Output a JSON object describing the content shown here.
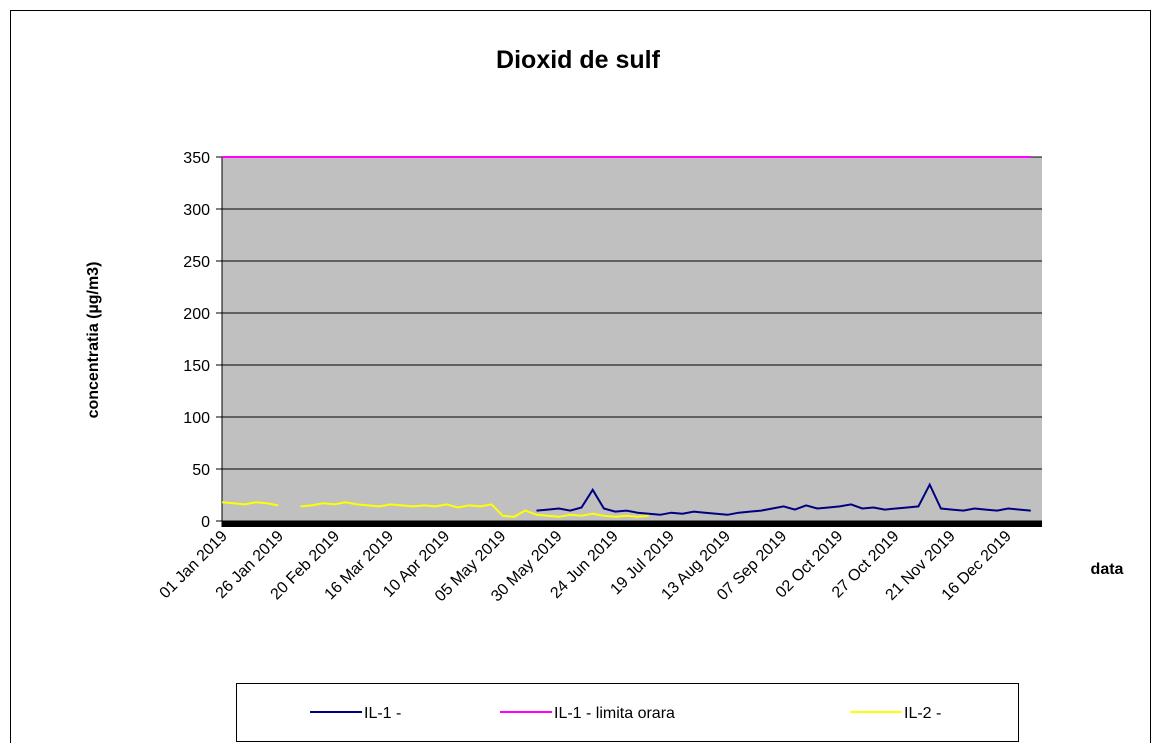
{
  "chart_data": {
    "type": "line",
    "title": "Dioxid de sulf",
    "x_label": "data",
    "y_label": "concentratia (µg/m3)",
    "x": [
      "2019-01-01",
      "2019-01-06",
      "2019-01-11",
      "2019-01-16",
      "2019-01-21",
      "2019-01-26",
      "2019-01-31",
      "2019-02-05",
      "2019-02-10",
      "2019-02-15",
      "2019-02-20",
      "2019-02-25",
      "2019-03-02",
      "2019-03-07",
      "2019-03-12",
      "2019-03-17",
      "2019-03-22",
      "2019-03-27",
      "2019-04-01",
      "2019-04-06",
      "2019-04-11",
      "2019-04-16",
      "2019-04-21",
      "2019-04-26",
      "2019-05-01",
      "2019-05-06",
      "2019-05-11",
      "2019-05-16",
      "2019-05-21",
      "2019-05-26",
      "2019-05-31",
      "2019-06-05",
      "2019-06-10",
      "2019-06-15",
      "2019-06-20",
      "2019-06-25",
      "2019-06-30",
      "2019-07-05",
      "2019-07-10",
      "2019-07-15",
      "2019-07-20",
      "2019-07-25",
      "2019-07-30",
      "2019-08-04",
      "2019-08-09",
      "2019-08-14",
      "2019-08-19",
      "2019-08-24",
      "2019-08-29",
      "2019-09-03",
      "2019-09-08",
      "2019-09-13",
      "2019-09-18",
      "2019-09-23",
      "2019-09-28",
      "2019-10-03",
      "2019-10-08",
      "2019-10-13",
      "2019-10-18",
      "2019-10-23",
      "2019-10-28",
      "2019-11-02",
      "2019-11-07",
      "2019-11-12",
      "2019-11-17",
      "2019-11-22",
      "2019-11-27",
      "2019-12-02",
      "2019-12-07",
      "2019-12-12",
      "2019-12-17",
      "2019-12-22",
      "2019-12-27"
    ],
    "series": [
      {
        "name": "IL-1 -",
        "color": "#000080",
        "values": [
          null,
          null,
          null,
          null,
          null,
          null,
          null,
          null,
          null,
          null,
          null,
          null,
          null,
          null,
          null,
          null,
          null,
          null,
          null,
          null,
          null,
          null,
          null,
          null,
          null,
          null,
          null,
          null,
          10,
          11,
          12,
          10,
          13,
          30,
          12,
          9,
          10,
          8,
          7,
          6,
          8,
          7,
          9,
          8,
          7,
          6,
          8,
          9,
          10,
          12,
          14,
          11,
          15,
          12,
          13,
          14,
          16,
          12,
          13,
          11,
          12,
          13,
          14,
          35,
          12,
          11,
          10,
          12,
          11,
          10,
          12,
          11,
          10
        ]
      },
      {
        "name": "IL-1 - limita orara",
        "color": "#ff00ff",
        "values": [
          350,
          350,
          350,
          350,
          350,
          350,
          350,
          350,
          350,
          350,
          350,
          350,
          350,
          350,
          350,
          350,
          350,
          350,
          350,
          350,
          350,
          350,
          350,
          350,
          350,
          350,
          350,
          350,
          350,
          350,
          350,
          350,
          350,
          350,
          350,
          350,
          350,
          350,
          350,
          350,
          350,
          350,
          350,
          350,
          350,
          350,
          350,
          350,
          350,
          350,
          350,
          350,
          350,
          350,
          350,
          350,
          350,
          350,
          350,
          350,
          350,
          350,
          350,
          350,
          350,
          350,
          350,
          350,
          350,
          350,
          350,
          350,
          350
        ]
      },
      {
        "name": "IL-2 -",
        "color": "#ffff00",
        "values": [
          18,
          17,
          16,
          18,
          17,
          15,
          null,
          14,
          15,
          17,
          16,
          18,
          16,
          15,
          14,
          16,
          15,
          14,
          15,
          14,
          16,
          13,
          15,
          14,
          16,
          5,
          4,
          10,
          6,
          5,
          4,
          6,
          5,
          7,
          5,
          4,
          5,
          4,
          5,
          null,
          null,
          null,
          null,
          null,
          null,
          null,
          null,
          null,
          null,
          null,
          null,
          null,
          null,
          null,
          null,
          null,
          null,
          null,
          null,
          null,
          null,
          null,
          null,
          null,
          null,
          null,
          null,
          null,
          null,
          null,
          null,
          null,
          null
        ]
      }
    ],
    "xlim": [
      "2019-01-01",
      "2020-01-01"
    ],
    "xticks": [
      {
        "value": "2019-01-01",
        "label": "01 Jan 2019"
      },
      {
        "value": "2019-01-26",
        "label": "26 Jan 2019"
      },
      {
        "value": "2019-02-20",
        "label": "20 Feb 2019"
      },
      {
        "value": "2019-03-16",
        "label": "16 Mar 2019"
      },
      {
        "value": "2019-04-10",
        "label": "10 Apr 2019"
      },
      {
        "value": "2019-05-05",
        "label": "05 May 2019"
      },
      {
        "value": "2019-05-30",
        "label": "30 May 2019"
      },
      {
        "value": "2019-06-24",
        "label": "24 Jun 2019"
      },
      {
        "value": "2019-07-19",
        "label": "19 Jul 2019"
      },
      {
        "value": "2019-08-13",
        "label": "13 Aug 2019"
      },
      {
        "value": "2019-09-07",
        "label": "07 Sep 2019"
      },
      {
        "value": "2019-10-02",
        "label": "02 Oct 2019"
      },
      {
        "value": "2019-10-27",
        "label": "27 Oct 2019"
      },
      {
        "value": "2019-11-21",
        "label": "21 Nov 2019"
      },
      {
        "value": "2019-12-16",
        "label": "16 Dec 2019"
      }
    ],
    "ylim": [
      0,
      350
    ],
    "yticks": [
      0,
      50,
      100,
      150,
      200,
      250,
      300,
      350
    ],
    "grid": true,
    "plot_color": "#c0c0c0",
    "legend": "bottom"
  }
}
